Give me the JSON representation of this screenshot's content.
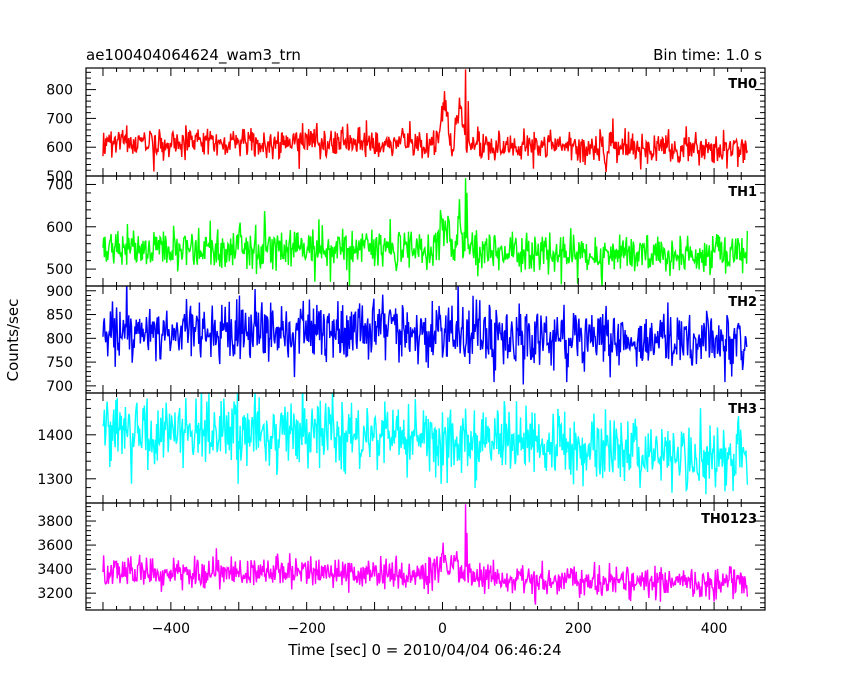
{
  "header": {
    "title": "ae100404064624_wam3_trn",
    "bin_time": "Bin time: 1.0 s"
  },
  "chart_data": {
    "type": "line",
    "title": "ae100404064624_wam3_trn",
    "subtitle": "Bin time: 1.0 s",
    "xlabel": "Time [sec] 0 = 2010/04/04 06:46:24",
    "ylabel": "Counts/sec",
    "xlim": [
      -525,
      475
    ],
    "x_ticks": [
      -400,
      -200,
      0,
      200,
      400
    ],
    "x_start": -500,
    "x_end": 449,
    "x_step": 1,
    "grid": false,
    "legend": "none",
    "panels": [
      {
        "name": "TH0",
        "color": "#ff0000",
        "ylim": [
          500,
          875
        ],
        "y_ticks": [
          500,
          600,
          700,
          800
        ],
        "baseline": [
          [
            -500,
            615
          ],
          [
            -200,
            618
          ],
          [
            0,
            610
          ],
          [
            100,
            605
          ],
          [
            300,
            595
          ],
          [
            449,
            590
          ]
        ],
        "noise_sd": 26,
        "features": [
          {
            "x": 0,
            "y": 745,
            "kind": "bump",
            "width": 4
          },
          {
            "x": 5,
            "y": 720,
            "kind": "bump",
            "width": 3
          },
          {
            "x": 25,
            "y": 760,
            "kind": "bump",
            "width": 4
          },
          {
            "x": 34,
            "y": 870,
            "kind": "spike"
          },
          {
            "x": 38,
            "y": 760,
            "kind": "spike"
          },
          {
            "x": 250,
            "y": 650,
            "kind": "bump",
            "width": 3
          }
        ]
      },
      {
        "name": "TH1",
        "color": "#00ff00",
        "ylim": [
          460,
          720
        ],
        "y_ticks": [
          500,
          600,
          700
        ],
        "baseline": [
          [
            -500,
            545
          ],
          [
            -200,
            550
          ],
          [
            0,
            545
          ],
          [
            100,
            540
          ],
          [
            300,
            535
          ],
          [
            449,
            535
          ]
        ],
        "noise_sd": 24,
        "features": [
          {
            "x": 0,
            "y": 640,
            "kind": "bump",
            "width": 4
          },
          {
            "x": 10,
            "y": 610,
            "kind": "bump",
            "width": 3
          },
          {
            "x": 25,
            "y": 650,
            "kind": "bump",
            "width": 3
          },
          {
            "x": 34,
            "y": 715,
            "kind": "spike"
          },
          {
            "x": 36,
            "y": 680,
            "kind": "spike"
          }
        ]
      },
      {
        "name": "TH2",
        "color": "#0000ff",
        "ylim": [
          685,
          910
        ],
        "y_ticks": [
          700,
          750,
          800,
          850,
          900
        ],
        "baseline": [
          [
            -500,
            820
          ],
          [
            -200,
            815
          ],
          [
            0,
            810
          ],
          [
            200,
            800
          ],
          [
            449,
            790
          ]
        ],
        "noise_sd": 33,
        "features": []
      },
      {
        "name": "TH3",
        "color": "#00ffff",
        "ylim": [
          1245,
          1495
        ],
        "y_ticks": [
          1300,
          1400
        ],
        "baseline": [
          [
            -500,
            1405
          ],
          [
            -200,
            1400
          ],
          [
            0,
            1392
          ],
          [
            200,
            1372
          ],
          [
            449,
            1345
          ]
        ],
        "noise_sd": 38,
        "features": []
      },
      {
        "name": "TH0123",
        "color": "#ff00ff",
        "ylim": [
          3060,
          3950
        ],
        "y_ticks": [
          3200,
          3400,
          3600,
          3800
        ],
        "baseline": [
          [
            -500,
            3370
          ],
          [
            -200,
            3375
          ],
          [
            0,
            3355
          ],
          [
            100,
            3320
          ],
          [
            300,
            3295
          ],
          [
            449,
            3280
          ]
        ],
        "noise_sd": 65,
        "features": [
          {
            "x": 0,
            "y": 3560,
            "kind": "bump",
            "width": 5
          },
          {
            "x": 20,
            "y": 3560,
            "kind": "bump",
            "width": 4
          },
          {
            "x": 34,
            "y": 3940,
            "kind": "spike"
          },
          {
            "x": 36,
            "y": 3700,
            "kind": "spike"
          }
        ]
      }
    ]
  }
}
